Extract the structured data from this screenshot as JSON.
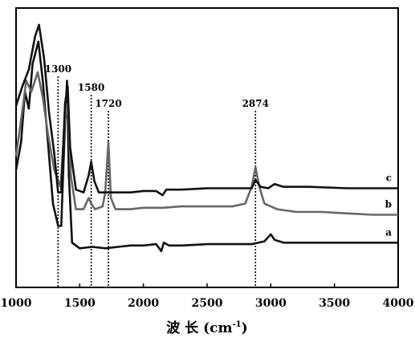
{
  "chart_data": {
    "type": "line",
    "title": "",
    "xlabel": "波 长 (cm",
    "xlabel_sup": "-1",
    "xlabel_close": ")",
    "ylabel": "",
    "xlim": [
      1000,
      4000
    ],
    "ylim": [
      0,
      100
    ],
    "grid": false,
    "x_ticks": [
      1000,
      1500,
      2000,
      2500,
      3000,
      3500,
      4000
    ],
    "x_tick_labels": [
      "1000",
      "1500",
      "2000",
      "2500",
      "3000",
      "3500",
      "4000"
    ],
    "reference_lines": [
      {
        "x": 1330,
        "label": "1300"
      },
      {
        "x": 1590,
        "label": "1580"
      },
      {
        "x": 1725,
        "label": "1720"
      },
      {
        "x": 2880,
        "label": "2874"
      }
    ],
    "series": [
      {
        "name": "a",
        "color": "#111111",
        "points": [
          [
            1000,
            42
          ],
          [
            1040,
            52
          ],
          [
            1070,
            70
          ],
          [
            1100,
            64
          ],
          [
            1130,
            80
          ],
          [
            1175,
            88
          ],
          [
            1210,
            74
          ],
          [
            1250,
            52
          ],
          [
            1290,
            30
          ],
          [
            1330,
            22
          ],
          [
            1355,
            22
          ],
          [
            1385,
            60
          ],
          [
            1400,
            74
          ],
          [
            1415,
            40
          ],
          [
            1440,
            16
          ],
          [
            1500,
            14
          ],
          [
            1600,
            14.5
          ],
          [
            1700,
            14
          ],
          [
            1800,
            14.5
          ],
          [
            1900,
            15
          ],
          [
            2000,
            15
          ],
          [
            2100,
            15.5
          ],
          [
            2140,
            13
          ],
          [
            2160,
            16
          ],
          [
            2200,
            15
          ],
          [
            2300,
            15
          ],
          [
            2500,
            15.5
          ],
          [
            2700,
            15.5
          ],
          [
            2850,
            15.5
          ],
          [
            2950,
            16.5
          ],
          [
            3000,
            19
          ],
          [
            3030,
            17
          ],
          [
            3100,
            16
          ],
          [
            3300,
            16
          ],
          [
            3500,
            16
          ],
          [
            3700,
            16
          ],
          [
            4000,
            16
          ]
        ]
      },
      {
        "name": "b",
        "color": "#666666",
        "points": [
          [
            1000,
            47
          ],
          [
            1040,
            60
          ],
          [
            1080,
            74
          ],
          [
            1120,
            70
          ],
          [
            1170,
            77
          ],
          [
            1210,
            68
          ],
          [
            1250,
            55
          ],
          [
            1300,
            42
          ],
          [
            1350,
            36
          ],
          [
            1380,
            58
          ],
          [
            1405,
            66
          ],
          [
            1430,
            40
          ],
          [
            1470,
            28
          ],
          [
            1530,
            28
          ],
          [
            1570,
            32
          ],
          [
            1590,
            30
          ],
          [
            1620,
            28
          ],
          [
            1680,
            29
          ],
          [
            1700,
            34
          ],
          [
            1725,
            52
          ],
          [
            1745,
            32
          ],
          [
            1780,
            28
          ],
          [
            1900,
            28
          ],
          [
            2000,
            28.5
          ],
          [
            2150,
            28.5
          ],
          [
            2300,
            29
          ],
          [
            2500,
            29
          ],
          [
            2700,
            29
          ],
          [
            2800,
            30
          ],
          [
            2850,
            36
          ],
          [
            2880,
            43
          ],
          [
            2910,
            36
          ],
          [
            2950,
            30
          ],
          [
            3050,
            28
          ],
          [
            3200,
            27
          ],
          [
            3400,
            27
          ],
          [
            3600,
            26.5
          ],
          [
            3800,
            26
          ],
          [
            4000,
            26
          ]
        ]
      },
      {
        "name": "c",
        "color": "#111111",
        "points": [
          [
            1000,
            65
          ],
          [
            1050,
            72
          ],
          [
            1100,
            78
          ],
          [
            1150,
            90
          ],
          [
            1180,
            94
          ],
          [
            1220,
            82
          ],
          [
            1260,
            62
          ],
          [
            1300,
            48
          ],
          [
            1330,
            34
          ],
          [
            1355,
            34
          ],
          [
            1385,
            66
          ],
          [
            1405,
            72
          ],
          [
            1425,
            50
          ],
          [
            1470,
            35
          ],
          [
            1530,
            34
          ],
          [
            1570,
            40
          ],
          [
            1590,
            45
          ],
          [
            1615,
            38
          ],
          [
            1650,
            34
          ],
          [
            1720,
            34
          ],
          [
            1800,
            34
          ],
          [
            1900,
            34
          ],
          [
            2000,
            34.5
          ],
          [
            2100,
            34.5
          ],
          [
            2150,
            33
          ],
          [
            2180,
            35
          ],
          [
            2300,
            35
          ],
          [
            2500,
            35.5
          ],
          [
            2700,
            35.5
          ],
          [
            2850,
            35.5
          ],
          [
            2880,
            38.5
          ],
          [
            2920,
            36
          ],
          [
            2980,
            35.5
          ],
          [
            3030,
            37
          ],
          [
            3100,
            36
          ],
          [
            3300,
            36
          ],
          [
            3600,
            35.5
          ],
          [
            4000,
            35.5
          ]
        ]
      }
    ]
  }
}
